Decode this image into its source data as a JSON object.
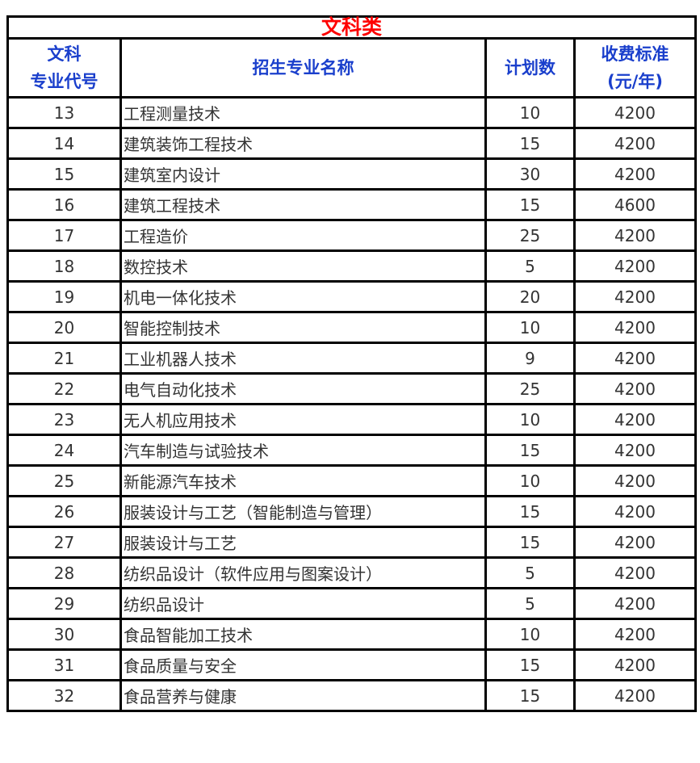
{
  "title": "文科类",
  "headers": {
    "code_line1": "文科",
    "code_line2": "专业代号",
    "name": "招生专业名称",
    "plan": "计划数",
    "fee_line1": "收费标准",
    "fee_line2": "(元/年)"
  },
  "rows": [
    {
      "code": "13",
      "name": "工程测量技术",
      "plan": "10",
      "fee": "4200"
    },
    {
      "code": "14",
      "name": "建筑装饰工程技术",
      "plan": "15",
      "fee": "4200"
    },
    {
      "code": "15",
      "name": "建筑室内设计",
      "plan": "30",
      "fee": "4200"
    },
    {
      "code": "16",
      "name": "建筑工程技术",
      "plan": "15",
      "fee": "4600"
    },
    {
      "code": "17",
      "name": "工程造价",
      "plan": "25",
      "fee": "4200"
    },
    {
      "code": "18",
      "name": "数控技术",
      "plan": "5",
      "fee": "4200"
    },
    {
      "code": "19",
      "name": "机电一体化技术",
      "plan": "20",
      "fee": "4200"
    },
    {
      "code": "20",
      "name": "智能控制技术",
      "plan": "10",
      "fee": "4200"
    },
    {
      "code": "21",
      "name": "工业机器人技术",
      "plan": "9",
      "fee": "4200"
    },
    {
      "code": "22",
      "name": "电气自动化技术",
      "plan": "25",
      "fee": "4200"
    },
    {
      "code": "23",
      "name": "无人机应用技术",
      "plan": "10",
      "fee": "4200"
    },
    {
      "code": "24",
      "name": "汽车制造与试验技术",
      "plan": "15",
      "fee": "4200"
    },
    {
      "code": "25",
      "name": "新能源汽车技术",
      "plan": "10",
      "fee": "4200"
    },
    {
      "code": "26",
      "name": "服装设计与工艺（智能制造与管理）",
      "plan": "15",
      "fee": "4200"
    },
    {
      "code": "27",
      "name": "服装设计与工艺",
      "plan": "15",
      "fee": "4200"
    },
    {
      "code": "28",
      "name": "纺织品设计（软件应用与图案设计）",
      "plan": "5",
      "fee": "4200"
    },
    {
      "code": "29",
      "name": "纺织品设计",
      "plan": "5",
      "fee": "4200"
    },
    {
      "code": "30",
      "name": "食品智能加工技术",
      "plan": "10",
      "fee": "4200"
    },
    {
      "code": "31",
      "name": "食品质量与安全",
      "plan": "15",
      "fee": "4200"
    },
    {
      "code": "32",
      "name": "食品营养与健康",
      "plan": "15",
      "fee": "4200"
    }
  ]
}
